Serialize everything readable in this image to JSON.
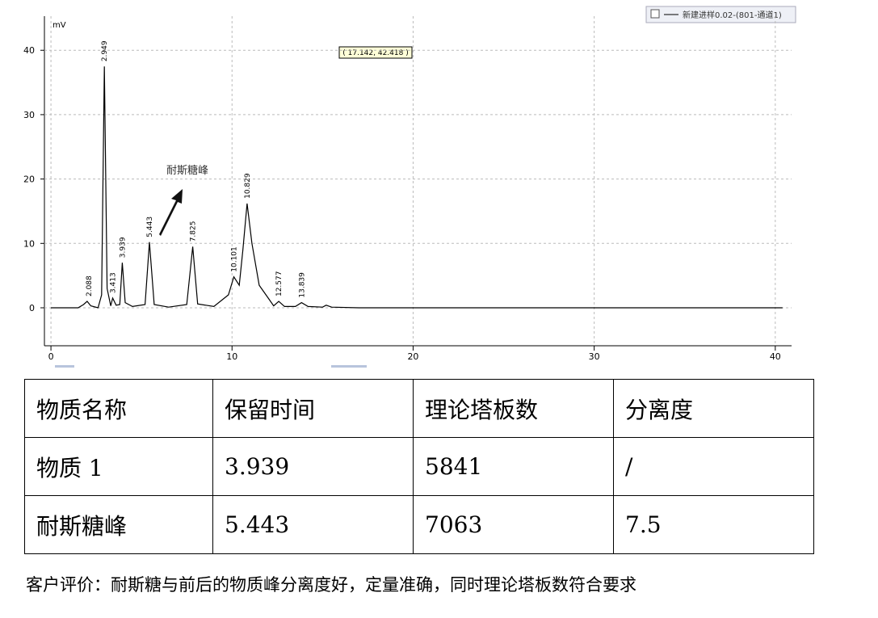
{
  "chart_data": {
    "type": "line",
    "y_unit": "mV",
    "x": [
      0,
      1.5,
      1.8,
      2.0,
      2.2,
      2.6,
      2.8,
      2.95,
      3.1,
      3.3,
      3.41,
      3.6,
      3.8,
      3.94,
      4.1,
      4.5,
      5.2,
      5.44,
      5.7,
      6.5,
      7.5,
      7.83,
      8.1,
      9.0,
      9.8,
      10.1,
      10.4,
      10.6,
      10.83,
      11.1,
      11.5,
      12.0,
      12.3,
      12.58,
      12.9,
      13.5,
      13.84,
      14.2,
      15.0,
      15.2,
      15.5,
      17,
      20,
      30,
      40.4
    ],
    "series": [
      {
        "name": "新建进样0.02-(801-通道1)",
        "color": "#000000",
        "values": [
          0,
          0,
          0.5,
          1,
          0.3,
          0,
          2,
          37.5,
          3,
          0.3,
          1.5,
          0.4,
          0.5,
          7,
          0.8,
          0.2,
          0.5,
          10.2,
          0.5,
          0.1,
          0.5,
          9.5,
          0.6,
          0.2,
          2,
          4.8,
          3.5,
          9,
          16.2,
          10,
          3.5,
          1.5,
          0.3,
          1,
          0.2,
          0.2,
          0.8,
          0.2,
          0.1,
          0.4,
          0.1,
          0,
          0,
          0,
          0
        ]
      }
    ],
    "xlim": [
      -0.36,
      40.9
    ],
    "ylim": [
      -5.9,
      45.3
    ],
    "xticks": [
      0,
      10,
      20,
      30,
      40
    ],
    "yticks": [
      0,
      10,
      20,
      30,
      40
    ],
    "grid": true,
    "peak_times": [
      2.088,
      2.949,
      3.413,
      3.939,
      5.443,
      7.825,
      10.101,
      10.829,
      12.577,
      13.839
    ],
    "peak_heights": [
      1,
      37.5,
      1.5,
      7,
      10.2,
      9.5,
      4.8,
      16.2,
      1,
      0.8
    ],
    "annotation": "耐斯糖峰",
    "cursor_readout": "( 17.142, 42.418 )"
  },
  "table": {
    "header": [
      "物质名称",
      "保留时间",
      "理论塔板数",
      "分离度"
    ],
    "rows": [
      [
        "物质 1",
        "3.939",
        "5841",
        "/"
      ],
      [
        "耐斯糖峰",
        "5.443",
        "7063",
        "7.5"
      ]
    ]
  },
  "note": "客户评价：耐斯糖与前后的物质峰分离度好，定量准确，同时理论塔板数符合要求"
}
